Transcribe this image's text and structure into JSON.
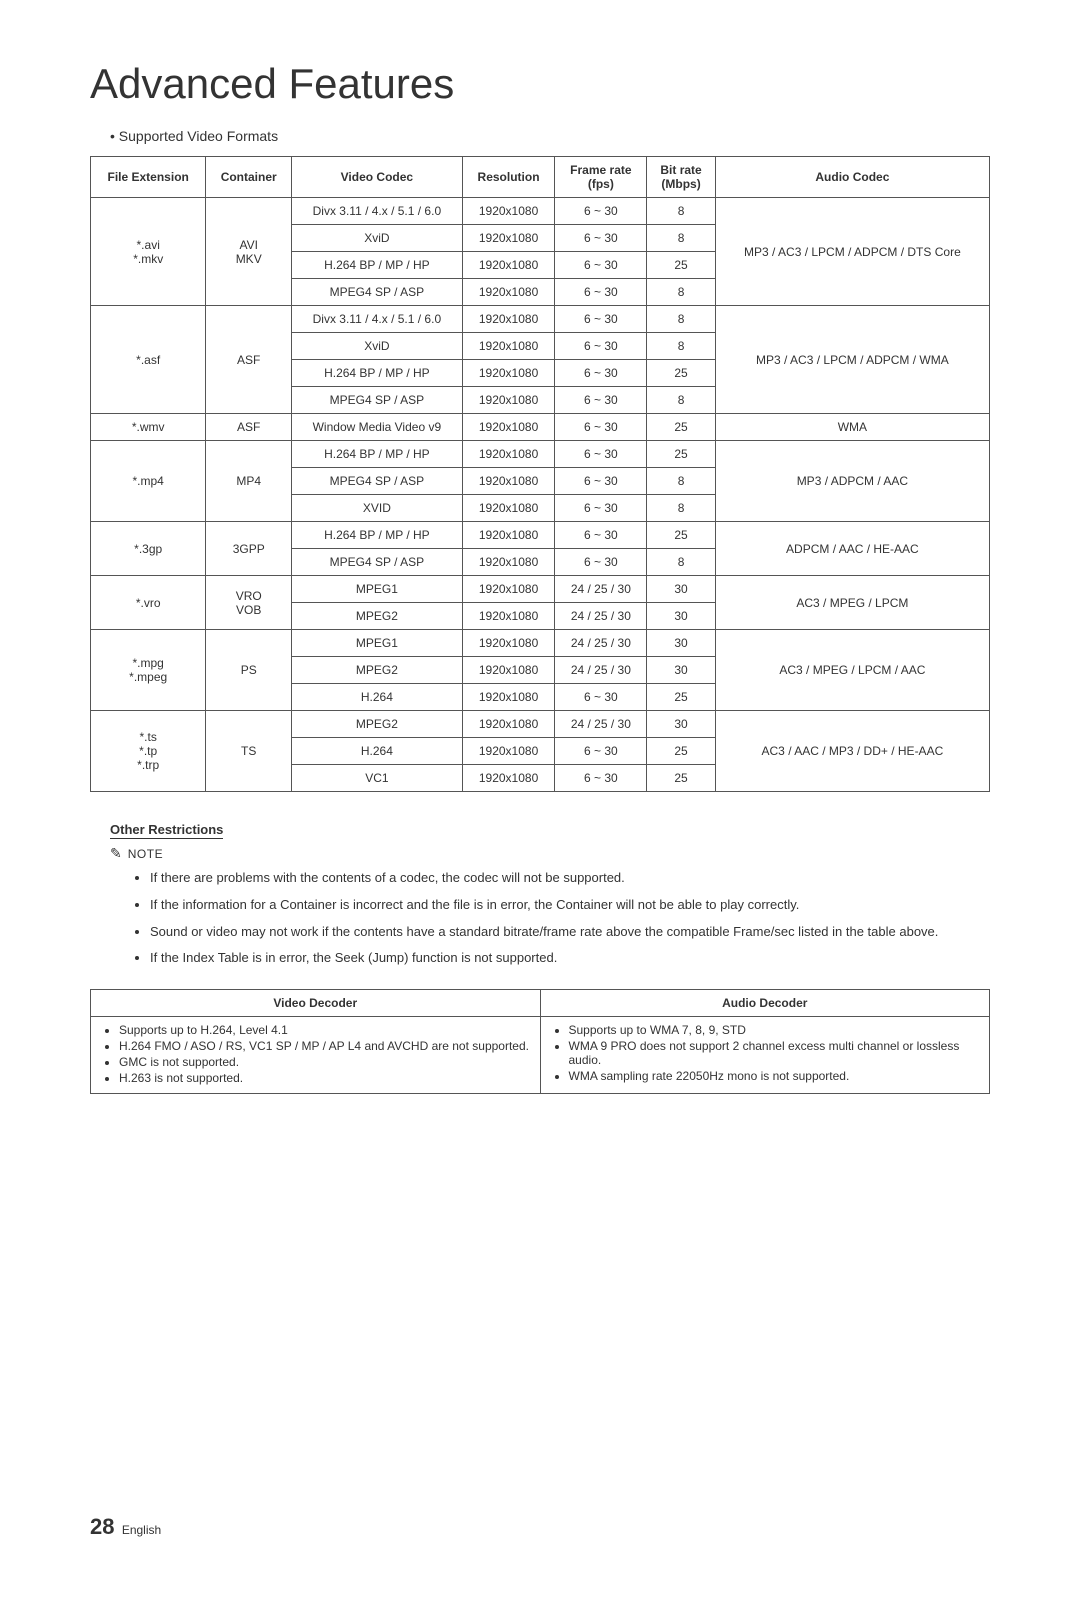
{
  "title": "Advanced Features",
  "lead_bullet": "Supported Video Formats",
  "format_table": {
    "headers": [
      "File Extension",
      "Container",
      "Video Codec",
      "Resolution",
      "Frame rate (fps)",
      "Bit rate (Mbps)",
      "Audio Codec"
    ],
    "groups": [
      {
        "ext": "*.avi\n*.mkv",
        "container": "AVI\nMKV",
        "audio": "MP3 / AC3 / LPCM / ADPCM / DTS Core",
        "rows": [
          {
            "codec": "Divx 3.11 / 4.x / 5.1 / 6.0",
            "res": "1920x1080",
            "fps": "6 ~ 30",
            "br": "8"
          },
          {
            "codec": "XviD",
            "res": "1920x1080",
            "fps": "6 ~ 30",
            "br": "8"
          },
          {
            "codec": "H.264 BP / MP / HP",
            "res": "1920x1080",
            "fps": "6 ~ 30",
            "br": "25"
          },
          {
            "codec": "MPEG4 SP / ASP",
            "res": "1920x1080",
            "fps": "6 ~ 30",
            "br": "8"
          }
        ]
      },
      {
        "ext": "*.asf",
        "container": "ASF",
        "audio": "MP3 / AC3 / LPCM / ADPCM / WMA",
        "rows": [
          {
            "codec": "Divx 3.11 / 4.x / 5.1 / 6.0",
            "res": "1920x1080",
            "fps": "6 ~ 30",
            "br": "8"
          },
          {
            "codec": "XviD",
            "res": "1920x1080",
            "fps": "6 ~ 30",
            "br": "8"
          },
          {
            "codec": "H.264 BP / MP / HP",
            "res": "1920x1080",
            "fps": "6 ~ 30",
            "br": "25"
          },
          {
            "codec": "MPEG4 SP / ASP",
            "res": "1920x1080",
            "fps": "6 ~ 30",
            "br": "8"
          }
        ]
      },
      {
        "ext": "*.wmv",
        "container": "ASF",
        "audio": "WMA",
        "rows": [
          {
            "codec": "Window Media Video v9",
            "res": "1920x1080",
            "fps": "6 ~ 30",
            "br": "25"
          }
        ]
      },
      {
        "ext": "*.mp4",
        "container": "MP4",
        "audio": "MP3 / ADPCM / AAC",
        "rows": [
          {
            "codec": "H.264 BP / MP / HP",
            "res": "1920x1080",
            "fps": "6 ~ 30",
            "br": "25"
          },
          {
            "codec": "MPEG4 SP / ASP",
            "res": "1920x1080",
            "fps": "6 ~ 30",
            "br": "8"
          },
          {
            "codec": "XVID",
            "res": "1920x1080",
            "fps": "6 ~ 30",
            "br": "8"
          }
        ]
      },
      {
        "ext": "*.3gp",
        "container": "3GPP",
        "audio": "ADPCM / AAC / HE-AAC",
        "rows": [
          {
            "codec": "H.264 BP / MP / HP",
            "res": "1920x1080",
            "fps": "6 ~ 30",
            "br": "25"
          },
          {
            "codec": "MPEG4 SP / ASP",
            "res": "1920x1080",
            "fps": "6 ~ 30",
            "br": "8"
          }
        ]
      },
      {
        "ext": "*.vro",
        "container": "VRO\nVOB",
        "audio": "AC3 / MPEG / LPCM",
        "rows": [
          {
            "codec": "MPEG1",
            "res": "1920x1080",
            "fps": "24 / 25 / 30",
            "br": "30"
          },
          {
            "codec": "MPEG2",
            "res": "1920x1080",
            "fps": "24 / 25 / 30",
            "br": "30"
          }
        ]
      },
      {
        "ext": "*.mpg\n*.mpeg",
        "container": "PS",
        "audio": "AC3 / MPEG / LPCM / AAC",
        "rows": [
          {
            "codec": "MPEG1",
            "res": "1920x1080",
            "fps": "24 / 25 / 30",
            "br": "30"
          },
          {
            "codec": "MPEG2",
            "res": "1920x1080",
            "fps": "24 / 25 / 30",
            "br": "30"
          },
          {
            "codec": "H.264",
            "res": "1920x1080",
            "fps": "6 ~ 30",
            "br": "25"
          }
        ]
      },
      {
        "ext": "*.ts\n*.tp\n*.trp",
        "container": "TS",
        "audio": "AC3 / AAC / MP3 / DD+ / HE-AAC",
        "rows": [
          {
            "codec": "MPEG2",
            "res": "1920x1080",
            "fps": "24 / 25 / 30",
            "br": "30"
          },
          {
            "codec": "H.264",
            "res": "1920x1080",
            "fps": "6 ~ 30",
            "br": "25"
          },
          {
            "codec": "VC1",
            "res": "1920x1080",
            "fps": "6 ~ 30",
            "br": "25"
          }
        ]
      }
    ]
  },
  "other_restrictions_label": "Other Restrictions",
  "note_label": "NOTE",
  "notes": [
    "If there are problems with the contents of a codec, the codec will not be supported.",
    "If the information for a Container is incorrect and the file is in error, the Container will not be able to play correctly.",
    "Sound or video may not work if the contents have a standard bitrate/frame rate above the compatible Frame/sec listed in the table above.",
    "If the Index Table is in error, the Seek (Jump) function is not supported."
  ],
  "decoder_table": {
    "headers": [
      "Video Decoder",
      "Audio Decoder"
    ],
    "video": [
      "Supports up to H.264, Level 4.1",
      "H.264 FMO / ASO / RS, VC1 SP / MP / AP L4 and AVCHD are not supported.",
      "GMC is not supported.",
      "H.263 is not supported."
    ],
    "audio": [
      "Supports up to WMA 7, 8, 9, STD",
      "WMA 9 PRO does not support 2 channel excess multi channel or lossless audio.",
      "WMA sampling rate 22050Hz mono is not supported."
    ]
  },
  "page_number": "28",
  "page_lang": "English"
}
